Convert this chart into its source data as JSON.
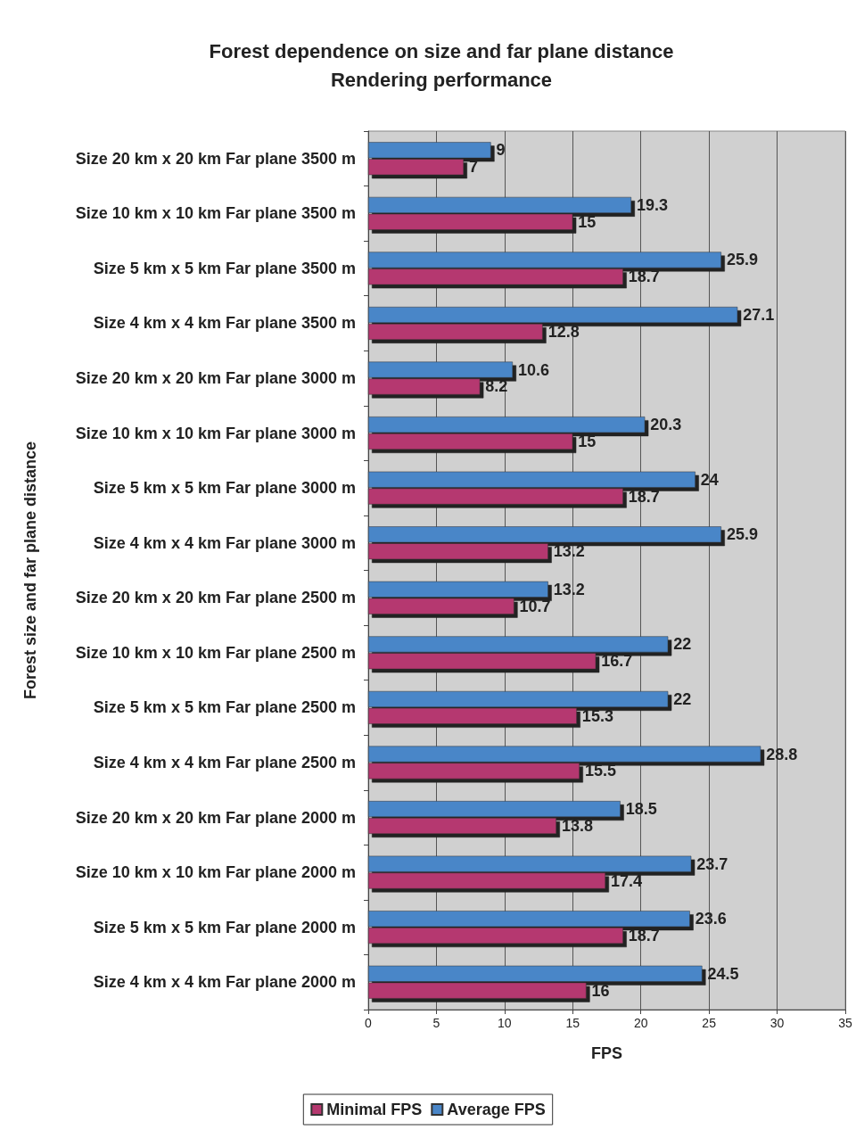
{
  "chart_data": {
    "type": "bar",
    "orientation": "horizontal",
    "title": "Forest dependence on size and far plane distance\nRendering performance",
    "xlabel": "FPS",
    "ylabel": "Forest size and far plane distance",
    "categories": [
      "Size 20 km x 20 km Far plane 3500 m",
      "Size 10 km x 10 km Far plane 3500 m",
      "Size 5 km x 5 km Far plane 3500 m",
      "Size 4 km x 4 km Far plane 3500 m",
      "Size 20 km x 20 km Far plane 3000 m",
      "Size 10 km x 10 km Far plane 3000 m",
      "Size 5 km x 5 km Far plane 3000 m",
      "Size 4 km x 4 km Far plane 3000 m",
      "Size 20 km x 20 km Far plane 2500 m",
      "Size 10 km x 10 km Far plane 2500 m",
      "Size 5 km x 5 km Far plane 2500 m",
      "Size 4 km x 4 km Far plane 2500 m",
      "Size 20 km x 20 km Far plane 2000 m",
      "Size 10 km x 10 km Far plane 2000 m",
      "Size 5 km x 5 km Far plane 2000 m",
      "Size 4 km x 4 km Far plane 2000 m"
    ],
    "series": [
      {
        "name": "Minimal FPS",
        "color": "#b5386f",
        "values": [
          7,
          15,
          18.7,
          12.8,
          8.2,
          15,
          18.7,
          13.2,
          10.7,
          16.7,
          15.3,
          15.5,
          13.8,
          17.4,
          18.7,
          16
        ]
      },
      {
        "name": "Average FPS",
        "color": "#4a86c8",
        "values": [
          9,
          19.3,
          25.9,
          27.1,
          10.6,
          20.3,
          24,
          25.9,
          13.2,
          22,
          22,
          28.8,
          18.5,
          23.7,
          23.6,
          24.5
        ]
      }
    ],
    "xlim": [
      0,
      35
    ],
    "xticks": [
      0,
      5,
      10,
      15,
      20,
      25,
      30,
      35
    ],
    "grid": "x",
    "legend": "bottom",
    "data_labels": true
  }
}
